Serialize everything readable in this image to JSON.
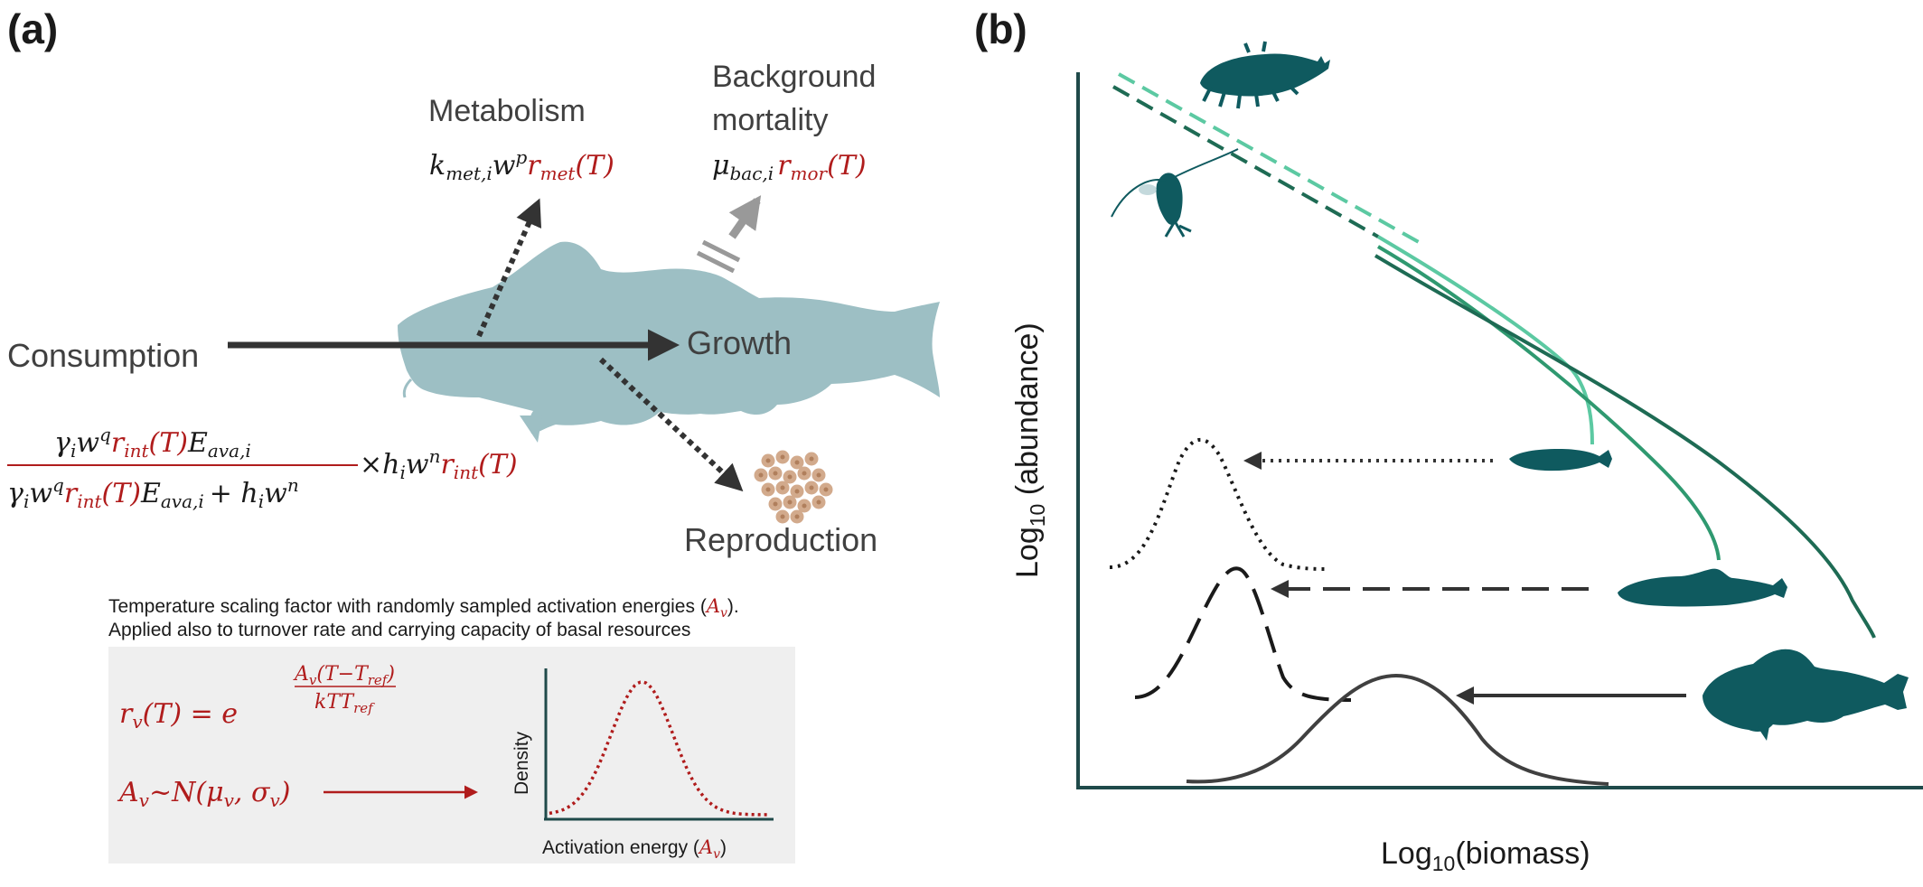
{
  "panel_a": {
    "label": "(a)",
    "metabolism": {
      "label": "Metabolism",
      "formula_black": "k",
      "formula_sub": "met,i",
      "formula_w": "w",
      "formula_sup": "p",
      "formula_red": "r",
      "formula_red_sub": "met",
      "formula_red_arg": "(T)"
    },
    "mortality": {
      "label_line1": "Background",
      "label_line2": "mortality",
      "formula_black": "μ",
      "formula_sub": "bac,i",
      "formula_red": "r",
      "formula_red_sub": "mor",
      "formula_red_arg": "(T)"
    },
    "consumption_label": "Consumption",
    "growth_label": "Growth",
    "reproduction_label": "Reproduction",
    "consumption_formula": {
      "numerator_a": "γ",
      "numerator_a_sub": "i",
      "numerator_w": "w",
      "numerator_sup": "q",
      "numerator_r": "r",
      "numerator_r_sub": "int",
      "numerator_r_arg": "(T)",
      "numerator_E": "E",
      "numerator_E_sub": "ava,i",
      "denominator_plus": "+ h",
      "denominator_h_sub": "i",
      "denominator_w": "w",
      "denominator_sup": "n",
      "times": "×h",
      "times_sub": "i",
      "times_w": "w",
      "times_sup": "n",
      "times_r": "r",
      "times_r_sub": "int",
      "times_r_arg": "(T)"
    },
    "temperature_note_line1": "Temperature scaling factor with randomly sampled activation energies (",
    "temperature_note_A": "A",
    "temperature_note_A_sub": "v",
    "temperature_note_close": ").",
    "temperature_note_line2": "Applied also to turnover rate and carrying capacity of basal resources",
    "scaling_formula": {
      "lhs": "r",
      "lhs_sub": "v",
      "lhs_arg": "(T) = e",
      "exp_num": "A",
      "exp_num_sub": "v",
      "exp_num_rest": "(T−T",
      "exp_num_ref": "ref",
      "exp_num_close": ")",
      "exp_den": "kTT",
      "exp_den_sub": "ref"
    },
    "distribution_formula": {
      "A": "A",
      "A_sub": "v",
      "rest": "~N(μ",
      "mu_sub": "v",
      "comma": ", σ",
      "sigma_sub": "v",
      "close": ")"
    },
    "inset": {
      "ylabel": "Density",
      "xlabel": "Activation energy (",
      "xlabel_A": "A",
      "xlabel_A_sub": "v",
      "xlabel_close": ")"
    }
  },
  "panel_b": {
    "label": "(b)",
    "xlabel_prefix": "Log",
    "xlabel_sub": "10",
    "xlabel_rest": "(biomass)",
    "ylabel_prefix": "Log",
    "ylabel_sub": "10",
    "ylabel_rest": " (abundance)"
  },
  "colors": {
    "text_dark": "#1a1a1a",
    "text_gray": "#404040",
    "red": "#b01c1c",
    "fish_pale": "#9dbfc4",
    "teal_dark": "#0f5a5f",
    "green_light": "#5cc9a2",
    "green_mid": "#2f9970",
    "green_dark": "#1e6b54",
    "axis": "#1f4a4a",
    "box": "#efefef",
    "egg": "#d2aa8c"
  }
}
